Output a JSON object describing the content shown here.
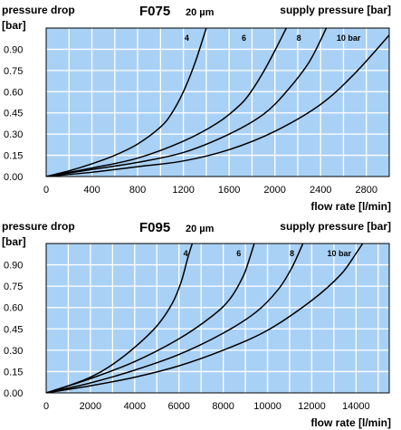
{
  "chart_data": [
    {
      "type": "line",
      "title": "F075",
      "subtitle": "20 µm",
      "ylabel": "pressure drop",
      "yunit": "[bar]",
      "xlabel": "flow rate [l/min]",
      "legend_title": "supply pressure [bar]",
      "xlim": [
        0,
        3000
      ],
      "ylim": [
        0,
        1.05
      ],
      "xticks": [
        "0",
        "400",
        "800",
        "1200",
        "1600",
        "2000",
        "2400",
        "2800"
      ],
      "xtick_values": [
        0,
        400,
        800,
        1200,
        1600,
        2000,
        2400,
        2800
      ],
      "yticks": [
        "0.00",
        "0.15",
        "0.30",
        "0.45",
        "0.60",
        "0.75",
        "0.90"
      ],
      "ytick_values": [
        0,
        0.15,
        0.3,
        0.45,
        0.6,
        0.75,
        0.9
      ],
      "x_grid_step": 200,
      "grid": true,
      "background_color": "#a9d1f5",
      "grid_color": "#ffffff",
      "line_color": "#000000",
      "series": [
        {
          "name": "4",
          "points": [
            [
              0,
              0
            ],
            [
              200,
              0.04
            ],
            [
              400,
              0.09
            ],
            [
              600,
              0.15
            ],
            [
              800,
              0.23
            ],
            [
              1000,
              0.35
            ],
            [
              1100,
              0.45
            ],
            [
              1200,
              0.6
            ],
            [
              1300,
              0.8
            ],
            [
              1400,
              1.05
            ]
          ]
        },
        {
          "name": "6",
          "points": [
            [
              0,
              0
            ],
            [
              400,
              0.06
            ],
            [
              800,
              0.13
            ],
            [
              1200,
              0.25
            ],
            [
              1500,
              0.38
            ],
            [
              1700,
              0.51
            ],
            [
              1800,
              0.61
            ],
            [
              1900,
              0.74
            ],
            [
              2000,
              0.89
            ],
            [
              2100,
              1.05
            ]
          ]
        },
        {
          "name": "8",
          "points": [
            [
              0,
              0
            ],
            [
              400,
              0.05
            ],
            [
              800,
              0.1
            ],
            [
              1200,
              0.17
            ],
            [
              1600,
              0.3
            ],
            [
              1900,
              0.44
            ],
            [
              2100,
              0.6
            ],
            [
              2300,
              0.81
            ],
            [
              2450,
              1.05
            ]
          ]
        },
        {
          "name": "10 bar",
          "points": [
            [
              0,
              0
            ],
            [
              400,
              0.03
            ],
            [
              800,
              0.07
            ],
            [
              1200,
              0.11
            ],
            [
              1600,
              0.19
            ],
            [
              2000,
              0.32
            ],
            [
              2400,
              0.51
            ],
            [
              2700,
              0.73
            ],
            [
              3000,
              1.0
            ]
          ]
        }
      ],
      "series_label_positions": [
        [
          1210,
          0.96
        ],
        [
          1710,
          0.96
        ],
        [
          2190,
          0.96
        ],
        [
          2540,
          0.96
        ]
      ]
    },
    {
      "type": "line",
      "title": "F095",
      "subtitle": "20 µm",
      "ylabel": "pressure drop",
      "yunit": "[bar]",
      "xlabel": "flow rate [l/min]",
      "legend_title": "supply pressure [bar]",
      "xlim": [
        0,
        15500
      ],
      "ylim": [
        0,
        1.05
      ],
      "xticks": [
        "0",
        "2000",
        "4000",
        "6000",
        "8000",
        "10000",
        "12000",
        "14000"
      ],
      "xtick_values": [
        0,
        2000,
        4000,
        6000,
        8000,
        10000,
        12000,
        14000
      ],
      "yticks": [
        "0.00",
        "0.15",
        "0.30",
        "0.45",
        "0.60",
        "0.75",
        "0.90"
      ],
      "ytick_values": [
        0,
        0.15,
        0.3,
        0.45,
        0.6,
        0.75,
        0.9
      ],
      "x_grid_step": 1000,
      "grid": true,
      "background_color": "#a9d1f5",
      "grid_color": "#ffffff",
      "line_color": "#000000",
      "series": [
        {
          "name": "4",
          "points": [
            [
              0,
              0
            ],
            [
              1000,
              0.05
            ],
            [
              2000,
              0.11
            ],
            [
              3000,
              0.2
            ],
            [
              4000,
              0.32
            ],
            [
              5000,
              0.47
            ],
            [
              5700,
              0.63
            ],
            [
              6100,
              0.78
            ],
            [
              6400,
              0.95
            ],
            [
              6600,
              1.05
            ]
          ]
        },
        {
          "name": "6",
          "points": [
            [
              0,
              0
            ],
            [
              2000,
              0.1
            ],
            [
              4000,
              0.22
            ],
            [
              6000,
              0.38
            ],
            [
              7500,
              0.54
            ],
            [
              8300,
              0.66
            ],
            [
              8900,
              0.82
            ],
            [
              9200,
              0.95
            ],
            [
              9400,
              1.05
            ]
          ]
        },
        {
          "name": "8",
          "points": [
            [
              0,
              0
            ],
            [
              2000,
              0.07
            ],
            [
              4000,
              0.16
            ],
            [
              6000,
              0.27
            ],
            [
              8000,
              0.42
            ],
            [
              9500,
              0.57
            ],
            [
              10500,
              0.73
            ],
            [
              11100,
              0.88
            ],
            [
              11600,
              1.05
            ]
          ]
        },
        {
          "name": "10 bar",
          "points": [
            [
              0,
              0
            ],
            [
              2000,
              0.05
            ],
            [
              4000,
              0.11
            ],
            [
              6000,
              0.19
            ],
            [
              8000,
              0.3
            ],
            [
              10000,
              0.44
            ],
            [
              12000,
              0.65
            ],
            [
              13300,
              0.83
            ],
            [
              14000,
              0.98
            ],
            [
              14300,
              1.05
            ]
          ]
        }
      ],
      "series_label_positions": [
        [
          6200,
          0.96
        ],
        [
          8600,
          0.96
        ],
        [
          11000,
          0.96
        ],
        [
          12700,
          0.96
        ]
      ]
    }
  ]
}
